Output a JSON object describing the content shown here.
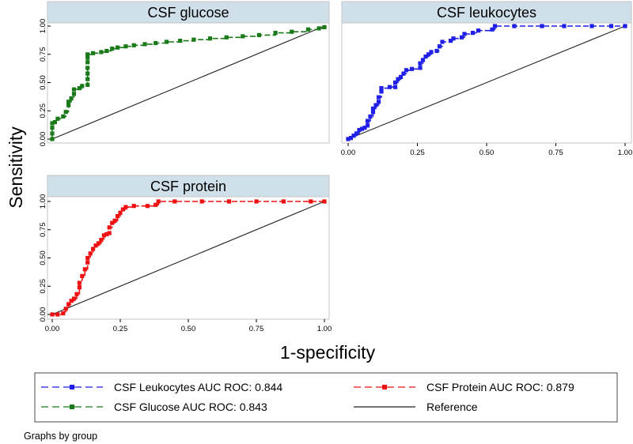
{
  "chart_data": [
    {
      "type": "line",
      "title": "CSF glucose",
      "xlim": [
        0,
        1
      ],
      "ylim": [
        0,
        1
      ],
      "xticks": [],
      "yticks": [
        "0.00",
        "0.25",
        "0.50",
        "0.75",
        "1.00"
      ],
      "series": [
        {
          "name": "CSF Glucose AUC ROC: 0.843",
          "color": "#1a7a1a",
          "points": [
            [
              0,
              0
            ],
            [
              0,
              0.05
            ],
            [
              0,
              0.1
            ],
            [
              0,
              0.14
            ],
            [
              0.01,
              0.15
            ],
            [
              0.02,
              0.18
            ],
            [
              0.04,
              0.2
            ],
            [
              0.05,
              0.24
            ],
            [
              0.06,
              0.3
            ],
            [
              0.06,
              0.33
            ],
            [
              0.07,
              0.36
            ],
            [
              0.08,
              0.4
            ],
            [
              0.08,
              0.44
            ],
            [
              0.1,
              0.45
            ],
            [
              0.11,
              0.47
            ],
            [
              0.13,
              0.48
            ],
            [
              0.13,
              0.53
            ],
            [
              0.13,
              0.58
            ],
            [
              0.13,
              0.63
            ],
            [
              0.13,
              0.68
            ],
            [
              0.13,
              0.72
            ],
            [
              0.13,
              0.75
            ],
            [
              0.15,
              0.76
            ],
            [
              0.18,
              0.77
            ],
            [
              0.2,
              0.78
            ],
            [
              0.22,
              0.8
            ],
            [
              0.24,
              0.81
            ],
            [
              0.27,
              0.82
            ],
            [
              0.3,
              0.83
            ],
            [
              0.34,
              0.84
            ],
            [
              0.38,
              0.85
            ],
            [
              0.42,
              0.86
            ],
            [
              0.47,
              0.87
            ],
            [
              0.52,
              0.88
            ],
            [
              0.58,
              0.89
            ],
            [
              0.64,
              0.9
            ],
            [
              0.7,
              0.91
            ],
            [
              0.76,
              0.92
            ],
            [
              0.82,
              0.94
            ],
            [
              0.88,
              0.95
            ],
            [
              0.94,
              0.97
            ],
            [
              0.98,
              0.98
            ],
            [
              1,
              0.99
            ]
          ]
        }
      ],
      "reference": [
        [
          0,
          0
        ],
        [
          1,
          1
        ]
      ]
    },
    {
      "type": "line",
      "title": "CSF leukocytes",
      "xlim": [
        0,
        1
      ],
      "ylim": [
        0,
        1
      ],
      "xticks": [
        "0.00",
        "0.25",
        "0.50",
        "0.75",
        "1.00"
      ],
      "yticks": [],
      "series": [
        {
          "name": "CSF Leukocytes AUC ROC: 0.844",
          "color": "#1f1fe6",
          "points": [
            [
              0,
              0
            ],
            [
              0.01,
              0.01
            ],
            [
              0.02,
              0.03
            ],
            [
              0.03,
              0.05
            ],
            [
              0.04,
              0.08
            ],
            [
              0.05,
              0.09
            ],
            [
              0.06,
              0.1
            ],
            [
              0.07,
              0.12
            ],
            [
              0.07,
              0.16
            ],
            [
              0.08,
              0.2
            ],
            [
              0.09,
              0.24
            ],
            [
              0.09,
              0.27
            ],
            [
              0.1,
              0.3
            ],
            [
              0.11,
              0.33
            ],
            [
              0.11,
              0.37
            ],
            [
              0.12,
              0.42
            ],
            [
              0.12,
              0.45
            ],
            [
              0.15,
              0.46
            ],
            [
              0.17,
              0.46
            ],
            [
              0.17,
              0.5
            ],
            [
              0.18,
              0.53
            ],
            [
              0.19,
              0.55
            ],
            [
              0.2,
              0.58
            ],
            [
              0.21,
              0.61
            ],
            [
              0.23,
              0.62
            ],
            [
              0.26,
              0.63
            ],
            [
              0.26,
              0.67
            ],
            [
              0.27,
              0.7
            ],
            [
              0.28,
              0.73
            ],
            [
              0.29,
              0.75
            ],
            [
              0.3,
              0.77
            ],
            [
              0.32,
              0.78
            ],
            [
              0.33,
              0.82
            ],
            [
              0.34,
              0.86
            ],
            [
              0.37,
              0.87
            ],
            [
              0.38,
              0.89
            ],
            [
              0.41,
              0.9
            ],
            [
              0.42,
              0.93
            ],
            [
              0.45,
              0.94
            ],
            [
              0.47,
              0.96
            ],
            [
              0.52,
              0.97
            ],
            [
              0.53,
              1.0
            ],
            [
              0.6,
              1.0
            ],
            [
              0.7,
              1.0
            ],
            [
              0.78,
              1.0
            ],
            [
              0.88,
              1.0
            ],
            [
              0.95,
              1.0
            ],
            [
              1,
              1.0
            ]
          ]
        }
      ],
      "reference": [
        [
          0,
          0
        ],
        [
          1,
          1
        ]
      ]
    },
    {
      "type": "line",
      "title": "CSF protein",
      "xlim": [
        0,
        1
      ],
      "ylim": [
        0,
        1
      ],
      "xticks": [
        "0.00",
        "0.25",
        "0.50",
        "0.75",
        "1.00"
      ],
      "yticks": [
        "0.00",
        "0.25",
        "0.50",
        "0.75",
        "1.00"
      ],
      "series": [
        {
          "name": "CSF Protein AUC ROC: 0.879",
          "color": "#ee1111",
          "points": [
            [
              0,
              0
            ],
            [
              0.02,
              0
            ],
            [
              0.04,
              0.01
            ],
            [
              0.05,
              0.05
            ],
            [
              0.06,
              0.09
            ],
            [
              0.07,
              0.12
            ],
            [
              0.08,
              0.14
            ],
            [
              0.09,
              0.18
            ],
            [
              0.1,
              0.24
            ],
            [
              0.1,
              0.28
            ],
            [
              0.11,
              0.34
            ],
            [
              0.12,
              0.4
            ],
            [
              0.13,
              0.46
            ],
            [
              0.13,
              0.5
            ],
            [
              0.14,
              0.54
            ],
            [
              0.15,
              0.58
            ],
            [
              0.16,
              0.61
            ],
            [
              0.17,
              0.63
            ],
            [
              0.18,
              0.66
            ],
            [
              0.19,
              0.7
            ],
            [
              0.2,
              0.71
            ],
            [
              0.21,
              0.72
            ],
            [
              0.21,
              0.77
            ],
            [
              0.22,
              0.81
            ],
            [
              0.23,
              0.83
            ],
            [
              0.24,
              0.87
            ],
            [
              0.25,
              0.9
            ],
            [
              0.26,
              0.93
            ],
            [
              0.27,
              0.95
            ],
            [
              0.3,
              0.96
            ],
            [
              0.35,
              0.96
            ],
            [
              0.38,
              0.97
            ],
            [
              0.39,
              1.0
            ],
            [
              0.45,
              1.0
            ],
            [
              0.55,
              1.0
            ],
            [
              0.65,
              1.0
            ],
            [
              0.75,
              1.0
            ],
            [
              0.85,
              1.0
            ],
            [
              0.95,
              1.0
            ],
            [
              1,
              1.0
            ]
          ]
        }
      ],
      "reference": [
        [
          0,
          0
        ],
        [
          1,
          1
        ]
      ]
    }
  ],
  "figure": {
    "ylabel": "Sensitivity",
    "xlabel": "1-specificity",
    "note": "Graphs by group"
  },
  "legend": {
    "items": [
      {
        "label": "CSF Leukocytes AUC ROC: 0.844",
        "color": "#1f1fe6",
        "style": "dashed-marker"
      },
      {
        "label": "CSF Protein AUC ROC: 0.879",
        "color": "#ee1111",
        "style": "dashed-marker"
      },
      {
        "label": "CSF Glucose AUC ROC: 0.843",
        "color": "#1a7a1a",
        "style": "dashed-marker"
      },
      {
        "label": "Reference",
        "color": "#000000",
        "style": "solid"
      }
    ]
  }
}
